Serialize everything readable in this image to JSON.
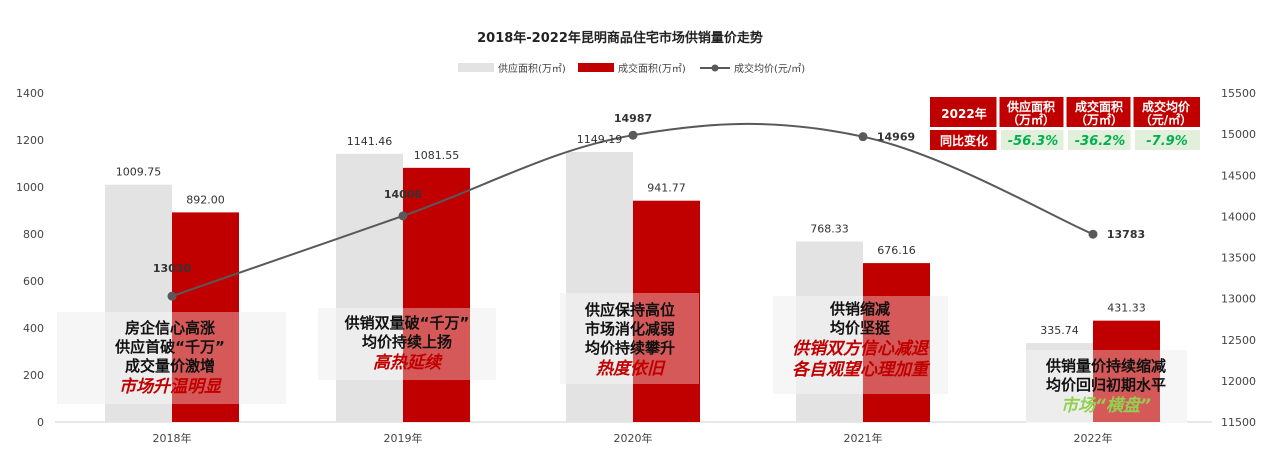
{
  "chart_data": {
    "type": "bar+line",
    "title": "2018年-2022年昆明商品住宅市场供销量价走势",
    "categories": [
      "2018年",
      "2019年",
      "2020年",
      "2021年",
      "2022年"
    ],
    "series": [
      {
        "name": "供应面积(万㎡)",
        "type": "bar",
        "axis": "left",
        "color": "#e3e3e3",
        "values": [
          1009.75,
          1141.46,
          1149.19,
          768.33,
          335.74
        ],
        "labels": [
          "1009.75",
          "1141.46",
          "1149.19",
          "768.33",
          "335.74"
        ]
      },
      {
        "name": "成交面积(万㎡)",
        "type": "bar",
        "axis": "left",
        "color": "#c00000",
        "values": [
          892.0,
          1081.55,
          941.77,
          676.16,
          431.33
        ],
        "labels": [
          "892.00",
          "1081.55",
          "941.77",
          "676.16",
          "431.33"
        ]
      },
      {
        "name": "成交均价(元/㎡)",
        "type": "line",
        "axis": "right",
        "color": "#595959",
        "values": [
          13030,
          14006,
          14987,
          14969,
          13783
        ],
        "labels": [
          "13030",
          "14006",
          "14987",
          "14969",
          "13783"
        ]
      }
    ],
    "ylim_left": [
      0,
      1400
    ],
    "yticks_left": [
      "0",
      "200",
      "400",
      "600",
      "800",
      "1000",
      "1200",
      "1400"
    ],
    "ylim_right": [
      11500,
      15500
    ],
    "yticks_right": [
      "11500",
      "12000",
      "12500",
      "13000",
      "13500",
      "14000",
      "14500",
      "15000",
      "15500"
    ],
    "legend_position": "top-center",
    "grid": false
  },
  "annotations": [
    {
      "lines": [
        "房企信心高涨",
        "供应首破“千万”",
        "成交量价激增"
      ],
      "highlight": "市场升温明显",
      "highlight_color": "red"
    },
    {
      "lines": [
        "供销双量破“千万”",
        "均价持续上扬"
      ],
      "highlight": "高热延续",
      "highlight_color": "red"
    },
    {
      "lines": [
        "供应保持高位",
        "市场消化减弱",
        "均价持续攀升"
      ],
      "highlight": "热度依旧",
      "highlight_color": "red"
    },
    {
      "lines": [
        "供销缩减",
        "均价坚挺"
      ],
      "highlight_lines": [
        "供销双方信心减退",
        "各自观望心理加重"
      ],
      "highlight_color": "red"
    },
    {
      "lines": [
        "供销量价持续缩减",
        "均价回归初期水平"
      ],
      "highlight": "市场“横盘”",
      "highlight_color": "green"
    }
  ],
  "summary_table": {
    "headers": [
      "2022年",
      "供应面积\n（万㎡）",
      "成交面积\n（万㎡）",
      "成交均价\n（元/㎡）"
    ],
    "row_label": "同比变化",
    "values": [
      "-56.3%",
      "-36.2%",
      "-7.9%"
    ]
  },
  "colors": {
    "supply": "#e3e3e3",
    "deal": "#c00000",
    "price": "#595959",
    "table_header": "#c00000",
    "table_cell": "#e2efda"
  }
}
